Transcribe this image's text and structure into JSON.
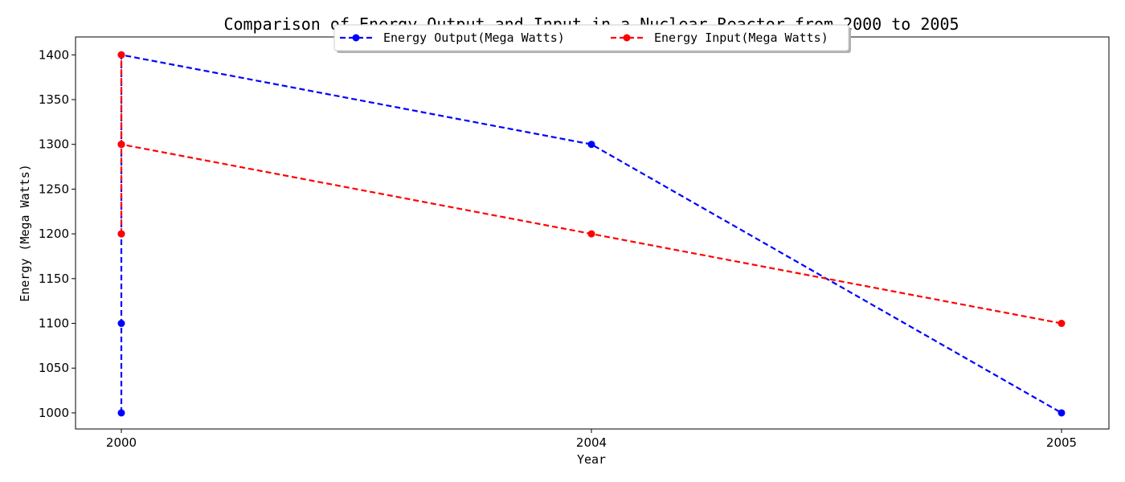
{
  "chart_data": {
    "type": "line",
    "title": "Comparison of Energy Output and Input in a Nuclear Reactor from 2000 to 2005",
    "xlabel": "Year",
    "ylabel": "Energy (Mega Watts)",
    "x_ticks": [
      "2000",
      "2004",
      "2005"
    ],
    "y_ticks": [
      1000,
      1050,
      1100,
      1150,
      1200,
      1250,
      1300,
      1350,
      1400
    ],
    "ylim": [
      982,
      1420
    ],
    "grid": false,
    "legend_position": "top-center",
    "series": [
      {
        "name": "Energy Output(Mega Watts)",
        "color": "#0000ff",
        "line_style": "dashed",
        "marker": "circle",
        "points": [
          {
            "x": "2000",
            "y": 1000
          },
          {
            "x": "2000",
            "y": 1100
          },
          {
            "x": "2000",
            "y": 1200
          },
          {
            "x": "2000",
            "y": 1300
          },
          {
            "x": "2000",
            "y": 1400
          },
          {
            "x": "2004",
            "y": 1300
          },
          {
            "x": "2005",
            "y": 1000
          }
        ]
      },
      {
        "name": "Energy Input(Mega Watts)",
        "color": "#ff0000",
        "line_style": "dashed",
        "marker": "circle",
        "points": [
          {
            "x": "2000",
            "y": 1200
          },
          {
            "x": "2000",
            "y": 1300
          },
          {
            "x": "2000",
            "y": 1400
          },
          {
            "x": "2000",
            "y": 1300
          },
          {
            "x": "2004",
            "y": 1200
          },
          {
            "x": "2005",
            "y": 1100
          }
        ]
      }
    ]
  }
}
